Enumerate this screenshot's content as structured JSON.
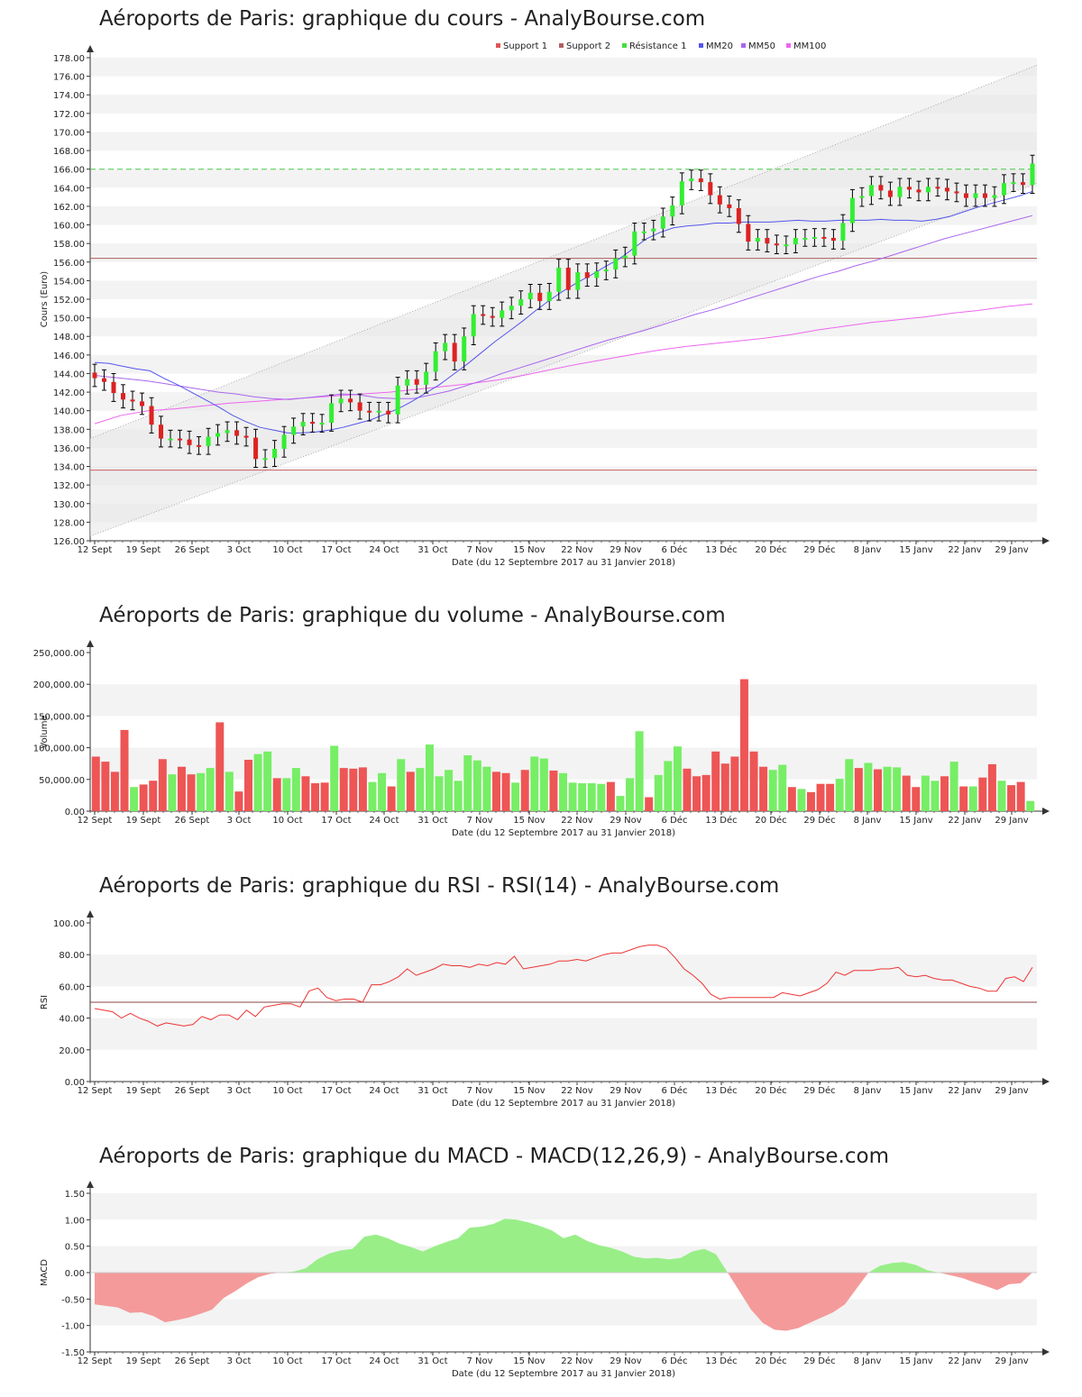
{
  "chart_data": [
    {
      "id": "price",
      "type": "candlestick",
      "title": "Aéroports de Paris: graphique du cours - AnalyBourse.com",
      "ylabel": "Cours (Euro)",
      "xlabel": "Date (du 12 Septembre 2017 au 31 Janvier 2018)",
      "ylim": [
        126,
        178
      ],
      "yticks": [
        "126.00",
        "128.00",
        "130.00",
        "132.00",
        "134.00",
        "136.00",
        "138.00",
        "140.00",
        "142.00",
        "144.00",
        "146.00",
        "148.00",
        "150.00",
        "152.00",
        "154.00",
        "156.00",
        "158.00",
        "160.00",
        "162.00",
        "164.00",
        "166.00",
        "168.00",
        "170.00",
        "172.00",
        "174.00",
        "176.00",
        "178.00"
      ],
      "xticks": [
        "12 Sept",
        "19 Sept",
        "26 Sept",
        "3 Oct",
        "10 Oct",
        "17 Oct",
        "24 Oct",
        "31 Oct",
        "7 Nov",
        "15 Nov",
        "22 Nov",
        "29 Nov",
        "6 Déc",
        "13 Déc",
        "20 Déc",
        "29 Déc",
        "8 Janv",
        "15 Janv",
        "22 Janv",
        "29 Janv"
      ],
      "legend": [
        "Support 1",
        "Support 2",
        "Résistance 1",
        "MM20",
        "MM50",
        "MM100"
      ],
      "legend_colors": [
        "#e05555",
        "#b06060",
        "#44dd44",
        "#5555ee",
        "#aa66ee",
        "#ee66ee"
      ],
      "support1": 133.6,
      "support2": 156.4,
      "resistance1": 166.0,
      "channel_upper": [
        137.0,
        177.2
      ],
      "channel_lower": [
        126.5,
        164.5
      ],
      "close": [
        143.5,
        143.1,
        141.9,
        141.2,
        141.0,
        140.5,
        138.5,
        137.0,
        137.0,
        136.9,
        136.3,
        136.2,
        137.2,
        137.6,
        137.9,
        137.3,
        137.1,
        134.8,
        134.9,
        135.9,
        137.4,
        138.3,
        138.8,
        138.6,
        138.7,
        140.8,
        141.3,
        140.9,
        140.0,
        139.8,
        140.0,
        139.6,
        142.7,
        143.4,
        142.8,
        144.2,
        146.4,
        147.3,
        145.3,
        148.0,
        150.4,
        150.2,
        150.0,
        150.8,
        151.3,
        152.0,
        152.7,
        151.8,
        152.8,
        155.4,
        153.0,
        154.9,
        154.3,
        155.0,
        155.2,
        156.4,
        156.7,
        159.3,
        159.3,
        159.6,
        160.9,
        162.1,
        164.7,
        165.0,
        164.6,
        163.2,
        162.2,
        161.8,
        160.1,
        158.2,
        158.6,
        158.0,
        157.8,
        157.9,
        158.6,
        158.6,
        158.7,
        158.6,
        158.3,
        160.2,
        162.9,
        163.1,
        164.3,
        163.7,
        163.0,
        164.1,
        163.8,
        163.5,
        164.1,
        164.0,
        163.6,
        163.4,
        162.9,
        163.4,
        162.9,
        163.2,
        164.5,
        164.6,
        164.3,
        166.6
      ],
      "ma20": [
        145.2,
        145.1,
        144.8,
        144.5,
        144.3,
        143.5,
        142.8,
        142.0,
        141.2,
        140.4,
        139.5,
        138.8,
        138.2,
        137.9,
        137.6,
        137.6,
        137.7,
        137.9,
        138.2,
        138.6,
        139.0,
        139.6,
        140.2,
        141.0,
        141.9,
        142.8,
        143.9,
        145.0,
        146.2,
        147.4,
        148.5,
        149.6,
        150.8,
        151.9,
        152.9,
        153.8,
        154.6,
        155.5,
        156.3,
        157.4,
        158.5,
        159.2,
        159.7,
        159.9,
        160.0,
        160.2,
        160.2,
        160.3,
        160.3,
        160.3,
        160.4,
        160.5,
        160.4,
        160.4,
        160.5,
        160.5,
        160.5,
        160.6,
        160.5,
        160.5,
        160.4,
        160.6,
        160.9,
        161.4,
        161.9,
        162.3,
        162.7,
        163.1,
        163.6
      ],
      "ma50": [
        143.8,
        143.6,
        143.4,
        143.2,
        142.9,
        142.6,
        142.3,
        142.0,
        141.8,
        141.5,
        141.3,
        141.2,
        141.4,
        141.6,
        141.8,
        141.7,
        141.4,
        141.3,
        141.3,
        141.7,
        142.1,
        142.7,
        143.3,
        144.0,
        144.6,
        145.2,
        145.8,
        146.4,
        147.0,
        147.6,
        148.1,
        148.6,
        149.2,
        149.8,
        150.4,
        150.9,
        151.5,
        152.1,
        152.7,
        153.3,
        153.9,
        154.5,
        155.0,
        155.6,
        156.1,
        156.7,
        157.3,
        157.9,
        158.5,
        159.0,
        159.5,
        160.0,
        160.5,
        161.0
      ],
      "ma100": [
        138.6,
        139.5,
        140.0,
        140.2,
        140.5,
        140.8,
        141.0,
        141.2,
        141.4,
        141.6,
        141.8,
        142.0,
        142.3,
        142.6,
        142.9,
        143.3,
        143.8,
        144.4,
        145.0,
        145.5,
        146.0,
        146.5,
        146.9,
        147.2,
        147.5,
        147.8,
        148.2,
        148.7,
        149.1,
        149.5,
        149.8,
        150.1,
        150.5,
        150.8,
        151.2,
        151.5
      ]
    },
    {
      "id": "volume",
      "type": "bar",
      "title": "Aéroports de Paris: graphique du volume - AnalyBourse.com",
      "ylabel": "Volume",
      "xlabel": "Date (du 12 Septembre 2017 au 31 Janvier 2018)",
      "ylim": [
        0,
        250000
      ],
      "yticks": [
        "0.00",
        "50,000.00",
        "100,000.00",
        "150,000.00",
        "200,000.00",
        "250,000.00"
      ],
      "xticks": [
        "12 Sept",
        "19 Sept",
        "26 Sept",
        "3 Oct",
        "10 Oct",
        "17 Oct",
        "24 Oct",
        "31 Oct",
        "7 Nov",
        "15 Nov",
        "22 Nov",
        "29 Nov",
        "6 Déc",
        "13 Déc",
        "20 Déc",
        "29 Déc",
        "8 Janv",
        "15 Janv",
        "22 Janv",
        "29 Janv"
      ],
      "values": [
        86000,
        78000,
        62000,
        128000,
        38000,
        42000,
        48000,
        82000,
        58000,
        70000,
        58000,
        60000,
        68000,
        140000,
        62000,
        31000,
        81000,
        90000,
        94000,
        52000,
        52000,
        68000,
        55000,
        44000,
        45000,
        103000,
        68000,
        67000,
        69000,
        46000,
        60000,
        39000,
        82000,
        62000,
        68000,
        105000,
        55000,
        65000,
        48000,
        88000,
        80000,
        70000,
        62000,
        60000,
        45000,
        65000,
        86000,
        83000,
        64000,
        60000,
        45000,
        44000,
        44000,
        43000,
        46000,
        24000,
        52000,
        126000,
        22000,
        57000,
        79000,
        102000,
        67000,
        55000,
        57000,
        94000,
        75000,
        86000,
        208000,
        94000,
        70000,
        65000,
        73000,
        38000,
        35000,
        30000,
        43000,
        43000,
        51000,
        82000,
        68000,
        76000,
        66000,
        70000,
        69000,
        56000,
        38000,
        56000,
        48000,
        55000,
        78000,
        39000,
        39000,
        53000,
        74000,
        48000,
        41000,
        46000,
        16000
      ],
      "colors": [
        "red",
        "red",
        "red",
        "red",
        "green",
        "red",
        "red",
        "red",
        "green",
        "red",
        "red",
        "green",
        "green",
        "red",
        "green",
        "red",
        "red",
        "green",
        "green",
        "red",
        "green",
        "green",
        "red",
        "red",
        "red",
        "green",
        "red",
        "red",
        "red",
        "green",
        "green",
        "red",
        "green",
        "red",
        "green",
        "green",
        "green",
        "green",
        "green",
        "green",
        "green",
        "green",
        "red",
        "red",
        "green",
        "red",
        "green",
        "green",
        "red",
        "green",
        "green",
        "green",
        "green",
        "green",
        "red",
        "green",
        "green",
        "green",
        "red",
        "green",
        "green",
        "green",
        "red",
        "red",
        "red",
        "red",
        "red",
        "red",
        "red",
        "red",
        "red",
        "green",
        "green",
        "red",
        "green",
        "red",
        "red",
        "red",
        "green",
        "green",
        "red",
        "green",
        "red",
        "green",
        "green",
        "red",
        "red",
        "green",
        "green",
        "red",
        "green",
        "red",
        "green",
        "red",
        "red",
        "green",
        "red",
        "red",
        "green"
      ]
    },
    {
      "id": "rsi",
      "type": "line",
      "title": "Aéroports de Paris: graphique du RSI - RSI(14) - AnalyBourse.com",
      "ylabel": "RSI",
      "xlabel": "Date (du 12 Septembre 2017 au 31 Janvier 2018)",
      "ylim": [
        0,
        100
      ],
      "yticks": [
        "0.00",
        "20.00",
        "40.00",
        "60.00",
        "80.00",
        "100.00"
      ],
      "xticks": [
        "12 Sept",
        "19 Sept",
        "26 Sept",
        "3 Oct",
        "10 Oct",
        "17 Oct",
        "24 Oct",
        "31 Oct",
        "7 Nov",
        "15 Nov",
        "22 Nov",
        "29 Nov",
        "6 Déc",
        "13 Déc",
        "20 Déc",
        "29 Déc",
        "8 Janv",
        "15 Janv",
        "22 Janv",
        "29 Janv"
      ],
      "reference": 50,
      "values": [
        46,
        45,
        44,
        40,
        43,
        40,
        38,
        35,
        37,
        36,
        35,
        36,
        41,
        39,
        42,
        42,
        39,
        45,
        41,
        47,
        48,
        49,
        49,
        47,
        57,
        59,
        53,
        51,
        52,
        52,
        50,
        61,
        61,
        63,
        66,
        71,
        67,
        69,
        71,
        74,
        73,
        73,
        72,
        74,
        73,
        75,
        74,
        79,
        71,
        72,
        73,
        74,
        76,
        76,
        77,
        76,
        78,
        80,
        81,
        81,
        83,
        85,
        86,
        86,
        84,
        78,
        71,
        67,
        62,
        55,
        52,
        53,
        53,
        53,
        53,
        53,
        53,
        56,
        55,
        54,
        56,
        58,
        62,
        69,
        67,
        70,
        70,
        70,
        71,
        71,
        72,
        67,
        66,
        67,
        65,
        64,
        64,
        62,
        60,
        59,
        57,
        57,
        65,
        66,
        63,
        72
      ]
    },
    {
      "id": "macd",
      "type": "area",
      "title": "Aéroports de Paris: graphique du MACD - MACD(12,26,9) - AnalyBourse.com",
      "ylabel": "MACD",
      "xlabel": "Date (du 12 Septembre 2017 au 31 Janvier 2018)",
      "ylim": [
        -1.5,
        1.5
      ],
      "yticks": [
        "-1.50",
        "-1.00",
        "-0.50",
        "0.00",
        "0.50",
        "1.00",
        "1.50"
      ],
      "xticks": [
        "12 Sept",
        "19 Sept",
        "26 Sept",
        "3 Oct",
        "10 Oct",
        "17 Oct",
        "24 Oct",
        "31 Oct",
        "7 Nov",
        "15 Nov",
        "22 Nov",
        "29 Nov",
        "6 Déc",
        "13 Déc",
        "20 Déc",
        "29 Déc",
        "8 Janv",
        "15 Janv",
        "22 Janv",
        "29 Janv"
      ],
      "values": [
        -0.6,
        -0.63,
        -0.66,
        -0.76,
        -0.75,
        -0.82,
        -0.94,
        -0.9,
        -0.85,
        -0.78,
        -0.7,
        -0.48,
        -0.35,
        -0.2,
        -0.08,
        -0.02,
        0.0,
        0.02,
        0.08,
        0.25,
        0.36,
        0.42,
        0.45,
        0.68,
        0.72,
        0.65,
        0.55,
        0.48,
        0.4,
        0.5,
        0.58,
        0.65,
        0.85,
        0.87,
        0.92,
        1.02,
        1.0,
        0.95,
        0.88,
        0.8,
        0.65,
        0.72,
        0.6,
        0.52,
        0.47,
        0.4,
        0.3,
        0.27,
        0.28,
        0.25,
        0.28,
        0.4,
        0.45,
        0.35,
        0.0,
        -0.35,
        -0.7,
        -0.95,
        -1.08,
        -1.1,
        -1.05,
        -0.95,
        -0.85,
        -0.75,
        -0.6,
        -0.3,
        0.0,
        0.13,
        0.18,
        0.2,
        0.15,
        0.05,
        0.0,
        -0.05,
        -0.1,
        -0.18,
        -0.25,
        -0.33,
        -0.22,
        -0.2,
        0.0
      ]
    }
  ]
}
